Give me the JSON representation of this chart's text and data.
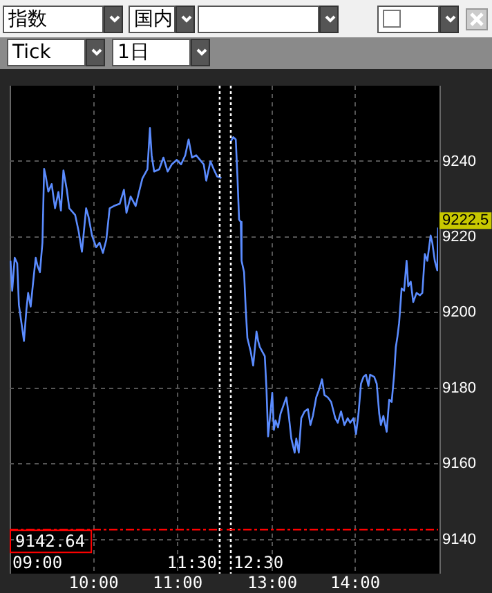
{
  "chart_data": [
    {
      "type": "other",
      "annotations": [
        "指数",
        "国内",
        "Tick",
        "1日"
      ]
    },
    {
      "type": "line",
      "x": [
        9.01,
        9.03,
        9.06,
        9.09,
        9.11,
        9.14,
        9.17,
        9.2,
        9.22,
        9.25,
        9.28,
        9.31,
        9.33,
        9.36,
        9.39,
        9.41,
        9.43,
        9.46,
        9.5,
        9.54,
        9.58,
        9.61,
        9.64,
        9.68,
        9.71,
        9.78,
        9.82,
        9.86,
        9.91,
        9.94,
        9.98,
        10.03,
        10.07,
        10.11,
        10.15,
        10.19,
        10.24,
        10.31,
        10.36,
        10.39,
        10.44,
        10.5,
        10.54,
        10.58,
        10.64,
        10.67,
        10.69,
        10.72,
        10.78,
        10.83,
        10.88,
        10.93,
        10.99,
        11.04,
        11.09,
        11.13,
        11.17,
        11.22,
        11.31,
        11.34,
        11.39,
        11.43,
        11.47,
        11.52
      ],
      "series": [
        {
          "color": "#5b8cff",
          "values": [
            9213.7,
            9205.8,
            9214.5,
            9213,
            9202,
            9197.3,
            9192.5,
            9201,
            9205.2,
            9201.6,
            9208.2,
            9214.5,
            9212.5,
            9210.7,
            9218.5,
            9238,
            9236,
            9232,
            9234,
            9227.6,
            9231.9,
            9227,
            9237.6,
            9232.5,
            9227.6,
            9225.8,
            9221.6,
            9216.1,
            9227.6,
            9225.2,
            9220.4,
            9217.3,
            9218.5,
            9215.8,
            9219.2,
            9227.6,
            9228.2,
            9228.8,
            9232.5,
            9226.4,
            9230.7,
            9228.2,
            9231.9,
            9235.5,
            9237.9,
            9248.8,
            9241.6,
            9237.3,
            9237.9,
            9241,
            9237.3,
            9239.2,
            9240.4,
            9239.2,
            9241.6,
            9245.8,
            9241,
            9241.6,
            9239.2,
            9234.9,
            9240,
            9237.9,
            9236,
            9235.6
          ]
        }
      ],
      "xlim": [
        9,
        11.55
      ],
      "xticks": [
        {
          "value": 10,
          "label": "10:00"
        },
        {
          "value": 11,
          "label": "11:00"
        }
      ],
      "ylim": [
        9131,
        9260
      ],
      "yticks": [
        9140,
        9160,
        9180,
        9200,
        9220,
        9240
      ],
      "grid": true,
      "marker": "none",
      "line_style": "solid",
      "tick_labels": "x",
      "ref_lines": [
        {
          "axis": "x",
          "value": 11.5,
          "label": "11:30",
          "color": "#ffffff",
          "line_style": "dotted"
        },
        {
          "axis": "y",
          "value": 9142.64,
          "label": "9142.64",
          "color": "#ff0000",
          "line_style": "dashed"
        }
      ],
      "annotations": [
        "09:00"
      ]
    },
    {
      "type": "line",
      "x": [
        12.5,
        12.53,
        12.56,
        12.58,
        12.6,
        12.62,
        12.63,
        12.66,
        12.68,
        12.7,
        12.74,
        12.77,
        12.81,
        12.83,
        12.85,
        12.91,
        12.93,
        12.95,
        12.98,
        13.0,
        13.02,
        13.04,
        13.07,
        13.1,
        13.14,
        13.17,
        13.2,
        13.23,
        13.27,
        13.29,
        13.32,
        13.35,
        13.39,
        13.43,
        13.46,
        13.49,
        13.53,
        13.57,
        13.6,
        13.63,
        13.67,
        13.71,
        13.76,
        13.79,
        13.83,
        13.87,
        13.91,
        13.94,
        13.98,
        14.01,
        14.04,
        14.07,
        14.1,
        14.13,
        14.16,
        14.18,
        14.23,
        14.26,
        14.29,
        14.31,
        14.34,
        14.38,
        14.41,
        14.44,
        14.47,
        14.49,
        14.51,
        14.53,
        14.56,
        14.59,
        14.62,
        14.64,
        14.67,
        14.7,
        14.74,
        14.78,
        14.81,
        14.84,
        14.87,
        14.91,
        14.93,
        14.96,
        14.99,
        15.0
      ],
      "series": [
        {
          "color": "#5b8cff",
          "values": [
            9245.2,
            9246.4,
            9245.8,
            9236,
            9224.6,
            9224,
            9213.7,
            9210.7,
            9201,
            9193.3,
            9189.7,
            9186,
            9195,
            9192.5,
            9190.9,
            9188.5,
            9180,
            9167.3,
            9174,
            9178.8,
            9169,
            9171.5,
            9169.7,
            9173.3,
            9175.8,
            9177.6,
            9172.7,
            9166.7,
            9163,
            9166.7,
            9163,
            9172.1,
            9173.9,
            9174.5,
            9170.3,
            9172.7,
            9177.6,
            9180,
            9182.4,
            9178.2,
            9177.6,
            9176.4,
            9172.1,
            9170.9,
            9173.9,
            9170.3,
            9172.1,
            9170.9,
            9172.1,
            9167.9,
            9173.3,
            9181.2,
            9183,
            9183.6,
            9180.6,
            9183.6,
            9183,
            9181.2,
            9173.3,
            9170.3,
            9172.7,
            9168.5,
            9177,
            9176.4,
            9183.6,
            9190.9,
            9193.7,
            9197.3,
            9206.4,
            9205.8,
            9213.7,
            9207,
            9208.2,
            9202.8,
            9205.2,
            9204.6,
            9205.2,
            9215.5,
            9213.7,
            9220.4,
            9218.5,
            9213.7,
            9211.2,
            9222.5
          ]
        }
      ],
      "xlim": [
        12.45,
        15.0
      ],
      "xticks": [
        {
          "value": 13,
          "label": "13:00"
        },
        {
          "value": 14,
          "label": "14:00"
        }
      ],
      "ylim": [
        9131,
        9260
      ],
      "yticks": [
        9140,
        9160,
        9180,
        9200,
        9220,
        9240
      ],
      "grid": true,
      "marker": "none",
      "line_style": "solid",
      "ref_lines": [
        {
          "axis": "x",
          "value": 12.5,
          "label": "12:30",
          "color": "#ffffff",
          "line_style": "dotted"
        },
        {
          "axis": "y",
          "value": 9142.64,
          "color": "#ff0000",
          "line_style": "dashed"
        }
      ],
      "annotations": [
        {
          "text": "9222.5",
          "x": 15.0,
          "y": 9222.5
        }
      ]
    }
  ]
}
